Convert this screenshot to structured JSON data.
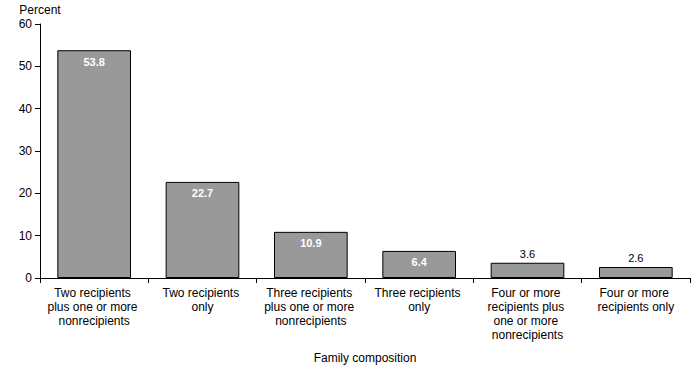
{
  "chart_data": {
    "type": "bar",
    "categories": [
      "Two recipients plus one or more nonrecipients",
      "Two recipients only",
      "Three recipients plus one or more nonrecipients",
      "Three recipients only",
      "Four or more recipients plus one or more nonrecipients",
      "Four or more recipients only"
    ],
    "values": [
      53.8,
      22.7,
      10.9,
      6.4,
      3.6,
      2.6
    ],
    "color": "#999999",
    "x_label": "Family composition",
    "y_label": "Percent",
    "ylim": [
      0,
      60
    ],
    "yticks": [
      0,
      10,
      20,
      30,
      40,
      50,
      60
    ],
    "grid": false,
    "data_labels": true
  }
}
